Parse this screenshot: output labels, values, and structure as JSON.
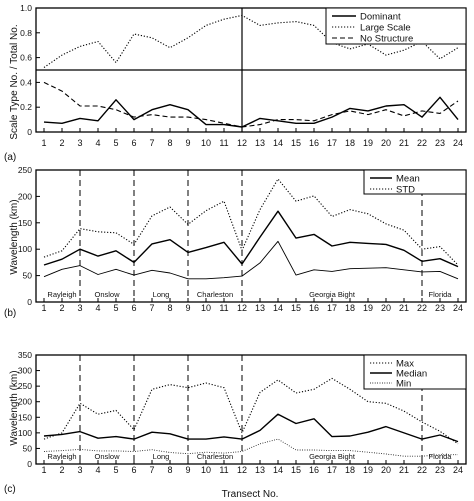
{
  "figure": {
    "xlabel": "Transect No.",
    "panel_a_ylabel": "Scale Type No. / Total No.",
    "wavelength_ylabel": "Wavelength (km)"
  },
  "chart_data": [
    {
      "type": "line",
      "panel_label": "(a)",
      "x": [
        1,
        2,
        3,
        4,
        5,
        6,
        7,
        8,
        9,
        10,
        11,
        12,
        13,
        14,
        15,
        16,
        17,
        18,
        19,
        20,
        21,
        22,
        23,
        24
      ],
      "ylim": [
        0,
        1.0
      ],
      "yticks": [
        "0",
        "0.2",
        "0.4",
        "0.6",
        "0.8",
        "1.0"
      ],
      "legend_position": "top-right",
      "series": [
        {
          "name": "Dominant",
          "style": "solid",
          "values": [
            0.08,
            0.07,
            0.11,
            0.09,
            0.26,
            0.1,
            0.18,
            0.22,
            0.18,
            0.06,
            0.06,
            0.04,
            0.11,
            0.09,
            0.07,
            0.07,
            0.12,
            0.19,
            0.17,
            0.21,
            0.22,
            0.12,
            0.28,
            0.1
          ]
        },
        {
          "name": "Large Scale",
          "style": "dotted",
          "values": [
            0.52,
            0.62,
            0.69,
            0.73,
            0.56,
            0.79,
            0.76,
            0.68,
            0.76,
            0.86,
            0.91,
            0.94,
            0.86,
            0.88,
            0.89,
            0.86,
            0.72,
            0.67,
            0.71,
            0.62,
            0.66,
            0.73,
            0.59,
            0.68
          ]
        },
        {
          "name": "No Structure",
          "style": "dashed",
          "values": [
            0.4,
            0.33,
            0.21,
            0.21,
            0.18,
            0.12,
            0.14,
            0.12,
            0.12,
            0.1,
            0.07,
            0.04,
            0.06,
            0.1,
            0.1,
            0.09,
            0.14,
            0.17,
            0.14,
            0.18,
            0.13,
            0.17,
            0.15,
            0.25
          ]
        }
      ],
      "vlines": [
        12
      ],
      "hlines": [
        0.5
      ]
    },
    {
      "type": "line",
      "panel_label": "(b)",
      "x": [
        1,
        2,
        3,
        4,
        5,
        6,
        7,
        8,
        9,
        10,
        11,
        12,
        13,
        14,
        15,
        16,
        17,
        18,
        19,
        20,
        21,
        22,
        23,
        24
      ],
      "ylim": [
        0,
        250
      ],
      "yticks": [
        "0",
        "50",
        "100",
        "150",
        "200",
        "250"
      ],
      "legend_position": "top-right",
      "series": [
        {
          "name": "Mean",
          "style": "solid",
          "values": [
            70,
            81,
            100,
            87,
            97,
            75,
            110,
            118,
            94,
            103,
            113,
            72,
            123,
            172,
            121,
            128,
            106,
            113,
            111,
            109,
            98,
            77,
            82,
            67
          ]
        },
        {
          "name": "STD",
          "style": "dotted",
          "values": [
            85,
            97,
            139,
            133,
            131,
            109,
            163,
            180,
            147,
            173,
            191,
            98,
            175,
            233,
            191,
            201,
            162,
            175,
            167,
            148,
            136,
            100,
            105,
            70
          ]
        },
        {
          "name": "",
          "style": "solid-thin",
          "values": [
            48,
            62,
            69,
            52,
            62,
            51,
            60,
            55,
            44,
            44,
            46,
            49,
            74,
            115,
            51,
            61,
            58,
            63,
            64,
            65,
            61,
            57,
            58,
            44
          ]
        }
      ],
      "vlines": [
        3,
        6,
        9,
        12,
        22
      ],
      "regions": [
        {
          "name": "Rayleigh",
          "x": 2
        },
        {
          "name": "Onslow",
          "x": 4.5
        },
        {
          "name": "Long",
          "x": 7.5
        },
        {
          "name": "Charleston",
          "x": 10.5
        },
        {
          "name": "Georgia Bight",
          "x": 17
        },
        {
          "name": "Florida",
          "x": 23
        }
      ]
    },
    {
      "type": "line",
      "panel_label": "(c)",
      "x": [
        1,
        2,
        3,
        4,
        5,
        6,
        7,
        8,
        9,
        10,
        11,
        12,
        13,
        14,
        15,
        16,
        17,
        18,
        19,
        20,
        21,
        22,
        23,
        24
      ],
      "ylim": [
        0,
        350
      ],
      "yticks": [
        "0",
        "50",
        "100",
        "150",
        "200",
        "250",
        "300",
        "350"
      ],
      "legend_position": "top-right",
      "series": [
        {
          "name": "Max",
          "style": "dotted",
          "values": [
            80,
            100,
            195,
            160,
            172,
            110,
            240,
            255,
            245,
            260,
            245,
            100,
            230,
            270,
            228,
            240,
            275,
            240,
            200,
            195,
            170,
            135,
            105,
            65
          ]
        },
        {
          "name": "Median",
          "style": "solid",
          "values": [
            90,
            95,
            104,
            83,
            88,
            80,
            102,
            97,
            80,
            80,
            87,
            80,
            108,
            160,
            130,
            145,
            88,
            90,
            102,
            120,
            100,
            80,
            93,
            72
          ]
        },
        {
          "name": "Min",
          "style": "dotted-fine",
          "values": [
            40,
            43,
            47,
            42,
            42,
            40,
            46,
            37,
            33,
            38,
            35,
            40,
            65,
            80,
            45,
            45,
            43,
            43,
            38,
            32,
            25,
            25,
            30,
            30
          ]
        }
      ],
      "vlines": [
        3,
        6,
        9,
        12,
        22
      ],
      "regions": [
        {
          "name": "Rayleigh",
          "x": 2
        },
        {
          "name": "Onslow",
          "x": 4.5
        },
        {
          "name": "Long",
          "x": 7.5
        },
        {
          "name": "Charleston",
          "x": 10.5
        },
        {
          "name": "Georgia Bight",
          "x": 17
        },
        {
          "name": "Florida",
          "x": 23
        }
      ]
    }
  ]
}
